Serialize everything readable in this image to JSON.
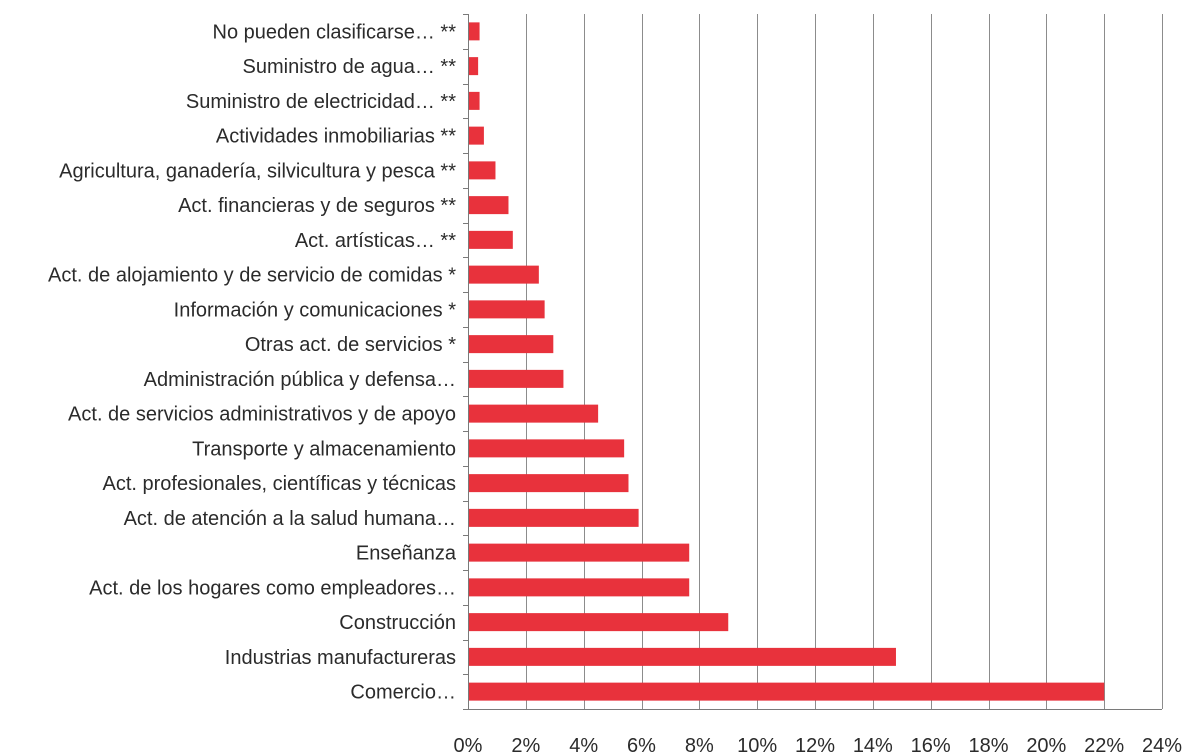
{
  "chart_data": {
    "type": "bar",
    "orientation": "horizontal",
    "title": "",
    "xlabel": "",
    "ylabel": "",
    "xlim": [
      0,
      24
    ],
    "x_ticks": [
      0,
      2,
      4,
      6,
      8,
      10,
      12,
      14,
      16,
      18,
      20,
      22,
      24
    ],
    "tick_suffix": "%",
    "grid": "vertical",
    "legend": "none",
    "bar_color": "#e8323c",
    "categories": [
      "No pueden clasificarse… **",
      "Suministro de agua… **",
      "Suministro de electricidad… **",
      "Actividades inmobiliarias **",
      "Agricultura, ganadería, silvicultura y pesca **",
      "Act. financieras y de seguros **",
      "Act. artísticas… **",
      "Act. de alojamiento y de servicio de comidas *",
      "Información y comunicaciones *",
      "Otras act. de servicios *",
      "Administración pública y defensa…",
      "Act. de servicios administrativos y de apoyo",
      "Transporte y almacenamiento",
      "Act. profesionales, científicas y técnicas",
      "Act. de atención a la salud humana…",
      "Enseñanza",
      "Act. de los hogares como empleadores…",
      "Construcción",
      "Industrias manufactureras",
      "Comercio…"
    ],
    "values": [
      0.4,
      0.35,
      0.4,
      0.55,
      0.95,
      1.4,
      1.55,
      2.45,
      2.65,
      2.95,
      3.3,
      4.5,
      5.4,
      5.55,
      5.9,
      7.65,
      7.65,
      9.0,
      14.8,
      22.0
    ]
  }
}
